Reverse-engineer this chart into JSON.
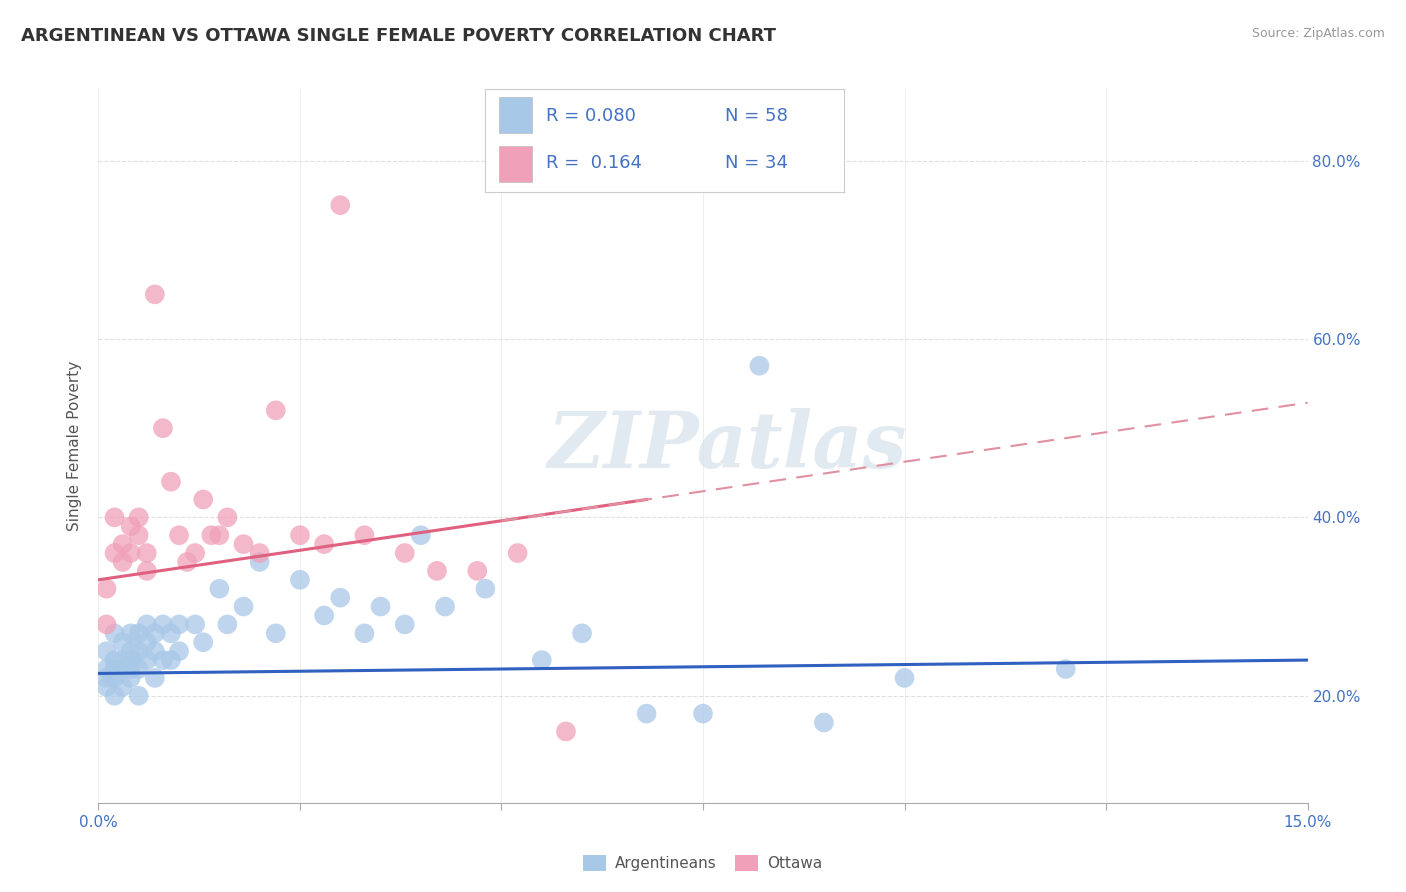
{
  "title": "ARGENTINEAN VS OTTAWA SINGLE FEMALE POVERTY CORRELATION CHART",
  "source": "Source: ZipAtlas.com",
  "ylabel": "Single Female Poverty",
  "xlim": [
    0.0,
    0.15
  ],
  "ylim": [
    0.08,
    0.88
  ],
  "yticks_right": [
    0.2,
    0.4,
    0.6,
    0.8
  ],
  "ytick_right_labels": [
    "20.0%",
    "40.0%",
    "60.0%",
    "80.0%"
  ],
  "watermark": "ZIPatlas",
  "blue_color": "#A8C8E8",
  "pink_color": "#F0A0B8",
  "blue_line_color": "#3060C0",
  "pink_solid_color": "#E06080",
  "pink_dash_color": "#E090A0",
  "argentinean_x": [
    0.001,
    0.001,
    0.001,
    0.001,
    0.002,
    0.002,
    0.002,
    0.002,
    0.002,
    0.003,
    0.003,
    0.003,
    0.003,
    0.004,
    0.004,
    0.004,
    0.004,
    0.004,
    0.005,
    0.005,
    0.005,
    0.005,
    0.006,
    0.006,
    0.006,
    0.007,
    0.007,
    0.007,
    0.008,
    0.008,
    0.009,
    0.009,
    0.01,
    0.01,
    0.012,
    0.013,
    0.015,
    0.016,
    0.018,
    0.02,
    0.022,
    0.025,
    0.028,
    0.03,
    0.033,
    0.035,
    0.038,
    0.04,
    0.043,
    0.048,
    0.055,
    0.06,
    0.068,
    0.075,
    0.082,
    0.09,
    0.1,
    0.12
  ],
  "argentinean_y": [
    0.25,
    0.23,
    0.22,
    0.21,
    0.27,
    0.24,
    0.23,
    0.22,
    0.2,
    0.26,
    0.24,
    0.23,
    0.21,
    0.27,
    0.25,
    0.24,
    0.23,
    0.22,
    0.27,
    0.25,
    0.23,
    0.2,
    0.28,
    0.26,
    0.24,
    0.27,
    0.25,
    0.22,
    0.28,
    0.24,
    0.27,
    0.24,
    0.28,
    0.25,
    0.28,
    0.26,
    0.32,
    0.28,
    0.3,
    0.35,
    0.27,
    0.33,
    0.29,
    0.31,
    0.27,
    0.3,
    0.28,
    0.38,
    0.3,
    0.32,
    0.24,
    0.27,
    0.18,
    0.18,
    0.57,
    0.17,
    0.22,
    0.23
  ],
  "ottawa_x": [
    0.001,
    0.001,
    0.002,
    0.002,
    0.003,
    0.003,
    0.004,
    0.004,
    0.005,
    0.005,
    0.006,
    0.006,
    0.007,
    0.008,
    0.009,
    0.01,
    0.011,
    0.012,
    0.013,
    0.014,
    0.015,
    0.016,
    0.018,
    0.02,
    0.022,
    0.025,
    0.028,
    0.03,
    0.033,
    0.038,
    0.042,
    0.047,
    0.052,
    0.058
  ],
  "ottawa_y": [
    0.28,
    0.32,
    0.36,
    0.4,
    0.35,
    0.37,
    0.39,
    0.36,
    0.38,
    0.4,
    0.36,
    0.34,
    0.65,
    0.5,
    0.44,
    0.38,
    0.35,
    0.36,
    0.42,
    0.38,
    0.38,
    0.4,
    0.37,
    0.36,
    0.52,
    0.38,
    0.37,
    0.75,
    0.38,
    0.36,
    0.34,
    0.34,
    0.36,
    0.16
  ],
  "background_color": "#FFFFFF",
  "grid_color": "#DDDDDD"
}
